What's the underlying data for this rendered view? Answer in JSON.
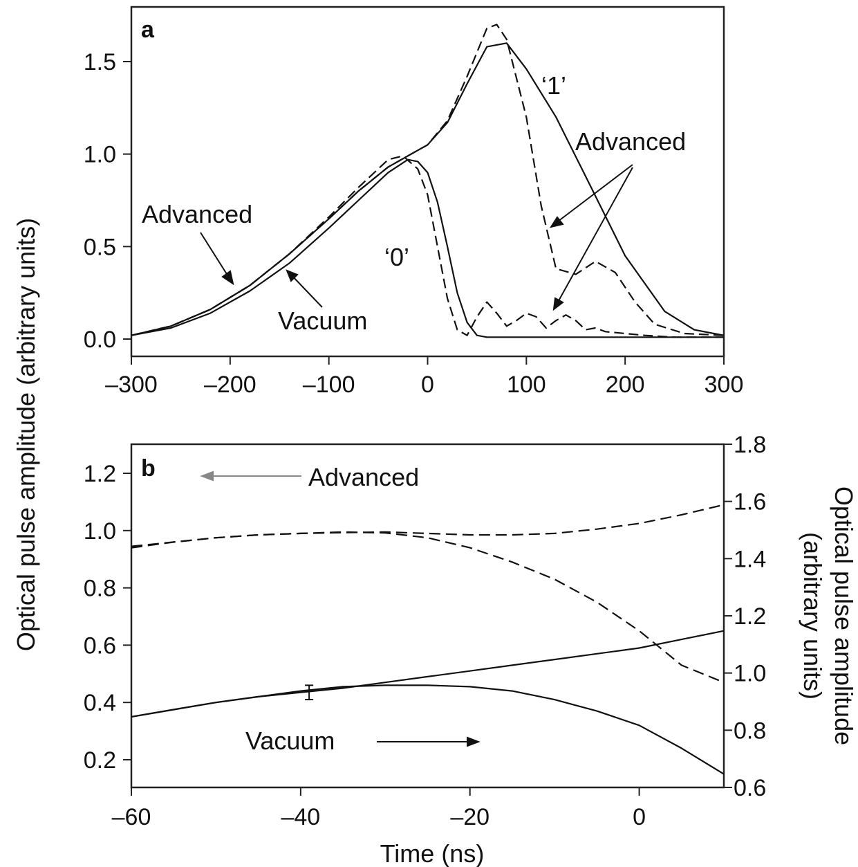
{
  "chart_data": [
    {
      "panel": "a",
      "type": "line",
      "ylabel": "Optical pulse amplitude (arbitrary units)",
      "xlim": [
        -300,
        300
      ],
      "ylim": [
        0,
        1.75
      ],
      "xticks": [
        "–300",
        "–200",
        "–100",
        "0",
        "100",
        "200",
        "300"
      ],
      "xtick_values": [
        -300,
        -200,
        -100,
        0,
        100,
        200,
        300
      ],
      "yticks": [
        "0.0",
        "0.5",
        "1.0",
        "1.5"
      ],
      "ytick_values": [
        0,
        0.5,
        1.0,
        1.5
      ],
      "grid": false,
      "series": [
        {
          "style": "solid",
          "x": [
            -300,
            -260,
            -220,
            -180,
            -140,
            -100,
            -70,
            -40,
            -20,
            0,
            20,
            40,
            60,
            80,
            100,
            130,
            160,
            200,
            240,
            270,
            300
          ],
          "y": [
            0.02,
            0.07,
            0.16,
            0.29,
            0.46,
            0.65,
            0.8,
            0.93,
            0.99,
            1.05,
            1.17,
            1.38,
            1.58,
            1.6,
            1.46,
            1.2,
            0.88,
            0.45,
            0.15,
            0.05,
            0.02
          ]
        },
        {
          "style": "dashed",
          "x": [
            -300,
            -260,
            -220,
            -180,
            -140,
            -100,
            -70,
            -40,
            -20,
            0,
            20,
            40,
            60,
            70,
            80,
            100,
            115,
            130,
            150,
            170,
            190,
            210,
            230,
            260,
            300
          ],
          "y": [
            0.02,
            0.07,
            0.16,
            0.29,
            0.46,
            0.65,
            0.8,
            0.93,
            0.99,
            1.05,
            1.18,
            1.42,
            1.68,
            1.7,
            1.62,
            1.2,
            0.72,
            0.38,
            0.35,
            0.42,
            0.36,
            0.2,
            0.08,
            0.03,
            0.02
          ]
        },
        {
          "style": "solid",
          "x": [
            -300,
            -260,
            -220,
            -180,
            -140,
            -100,
            -70,
            -40,
            -20,
            -10,
            0,
            10,
            20,
            30,
            40,
            50,
            60,
            100,
            150,
            200,
            250,
            300
          ],
          "y": [
            0.02,
            0.06,
            0.14,
            0.26,
            0.41,
            0.6,
            0.75,
            0.9,
            0.97,
            0.96,
            0.9,
            0.74,
            0.5,
            0.25,
            0.09,
            0.02,
            0.01,
            0.01,
            0.01,
            0.01,
            0.01,
            0.01
          ]
        },
        {
          "style": "dashed",
          "x": [
            -300,
            -260,
            -220,
            -180,
            -140,
            -100,
            -70,
            -40,
            -25,
            -10,
            0,
            10,
            20,
            30,
            40,
            50,
            60,
            70,
            80,
            90,
            100,
            110,
            120,
            130,
            140,
            150,
            160,
            170,
            180,
            200,
            220,
            250,
            300
          ],
          "y": [
            0.02,
            0.07,
            0.16,
            0.29,
            0.46,
            0.66,
            0.82,
            0.97,
            0.99,
            0.92,
            0.78,
            0.5,
            0.22,
            0.05,
            0.02,
            0.12,
            0.2,
            0.14,
            0.07,
            0.1,
            0.14,
            0.12,
            0.06,
            0.1,
            0.13,
            0.1,
            0.05,
            0.06,
            0.04,
            0.03,
            0.02,
            0.01,
            0.01
          ]
        }
      ],
      "annotations": [
        {
          "text": "Advanced",
          "id": "a-advanced-left"
        },
        {
          "text": "Vacuum",
          "id": "a-vacuum"
        },
        {
          "text": "‘0’",
          "id": "a-zero"
        },
        {
          "text": "‘1’",
          "id": "a-one"
        },
        {
          "text": "Advanced",
          "id": "a-advanced-right"
        }
      ]
    },
    {
      "panel": "b",
      "type": "line",
      "xlabel": "Time (ns)",
      "ylabel_right": "Optical pulse amplitude (arbitrary units)",
      "ylabel_right_lines": [
        "Optical pulse amplitude",
        "(arbitrary units)"
      ],
      "xlim": [
        -60,
        10
      ],
      "ylim_left": [
        0.1,
        1.3
      ],
      "ylim_right": [
        0.6,
        1.8
      ],
      "xticks": [
        "–60",
        "–40",
        "–20",
        "0"
      ],
      "xtick_values": [
        -60,
        -40,
        -20,
        0
      ],
      "yticks_left": [
        "0.2",
        "0.4",
        "0.6",
        "0.8",
        "1.0",
        "1.2"
      ],
      "ytick_values_left": [
        0.2,
        0.4,
        0.6,
        0.8,
        1.0,
        1.2
      ],
      "yticks_right": [
        "0.6",
        "0.8",
        "1.0",
        "1.2",
        "1.4",
        "1.6",
        "1.8"
      ],
      "ytick_values_right": [
        0.6,
        0.8,
        1.0,
        1.2,
        1.4,
        1.6,
        1.8
      ],
      "grid": false,
      "series": [
        {
          "style": "dashed",
          "axis": "left",
          "x": [
            -60,
            -55,
            -50,
            -45,
            -40,
            -35,
            -30,
            -25,
            -20,
            -15,
            -10,
            -5,
            0,
            5,
            10
          ],
          "y": [
            0.94,
            0.96,
            0.975,
            0.985,
            0.99,
            0.993,
            0.995,
            0.99,
            0.985,
            0.985,
            0.99,
            1.005,
            1.025,
            1.055,
            1.09
          ]
        },
        {
          "style": "dashed",
          "axis": "left",
          "x": [
            -60,
            -55,
            -50,
            -45,
            -40,
            -35,
            -30,
            -25,
            -20,
            -15,
            -10,
            -5,
            0,
            5,
            10
          ],
          "y": [
            0.945,
            0.96,
            0.975,
            0.985,
            0.99,
            0.995,
            0.992,
            0.975,
            0.94,
            0.89,
            0.83,
            0.75,
            0.65,
            0.53,
            0.47
          ]
        },
        {
          "style": "solid",
          "axis": "left",
          "x": [
            -60,
            -55,
            -50,
            -45,
            -40,
            -35,
            -30,
            -25,
            -20,
            -15,
            -10,
            -5,
            0,
            5,
            10
          ],
          "y": [
            0.35,
            0.375,
            0.4,
            0.42,
            0.435,
            0.45,
            0.47,
            0.49,
            0.51,
            0.53,
            0.55,
            0.57,
            0.59,
            0.62,
            0.65
          ]
        },
        {
          "style": "solid",
          "axis": "left",
          "x": [
            -60,
            -55,
            -50,
            -45,
            -40,
            -35,
            -30,
            -25,
            -20,
            -15,
            -10,
            -5,
            0,
            5,
            10
          ],
          "y": [
            0.35,
            0.375,
            0.4,
            0.42,
            0.44,
            0.455,
            0.46,
            0.46,
            0.455,
            0.44,
            0.41,
            0.37,
            0.32,
            0.24,
            0.15
          ]
        }
      ],
      "error_bar": {
        "x": -39,
        "y": 0.435,
        "err": 0.025
      },
      "annotations": [
        {
          "text": "Advanced",
          "id": "b-advanced"
        },
        {
          "text": "Vacuum",
          "id": "b-vacuum"
        }
      ]
    }
  ],
  "labels": {
    "panel_a": "a",
    "panel_b": "b",
    "ylabel_left": "Optical pulse amplitude (arbitrary units)",
    "ylabel_right_line1": "Optical pulse amplitude",
    "ylabel_right_line2": "(arbitrary units)",
    "xlabel": "Time (ns)",
    "a_advanced_left": "Advanced",
    "a_vacuum": "Vacuum",
    "a_zero": "‘0’",
    "a_one": "‘1’",
    "a_advanced_right": "Advanced",
    "b_advanced": "Advanced",
    "b_vacuum": "Vacuum"
  }
}
